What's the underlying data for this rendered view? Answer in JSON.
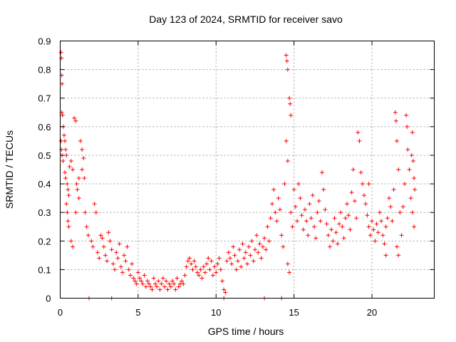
{
  "chart_data": {
    "type": "scatter",
    "title": "Day 123 of 2024, SRMTID for receiver savo",
    "xlabel": "GPS time / hours",
    "ylabel": "SRMTID / TECUs",
    "xlim": [
      0,
      24
    ],
    "ylim": [
      0,
      0.9
    ],
    "xticks": [
      0,
      5,
      10,
      15,
      20
    ],
    "xtick_labels": [
      "0",
      "5",
      "10",
      "15",
      "20"
    ],
    "yticks": [
      0,
      0.1,
      0.2,
      0.3,
      0.4,
      0.5,
      0.6,
      0.7,
      0.8,
      0.9
    ],
    "ytick_labels": [
      "0",
      "0.1",
      "0.2",
      "0.3",
      "0.4",
      "0.5",
      "0.6",
      "0.7",
      "0.8",
      "0.9"
    ],
    "grid": true,
    "marker": "+",
    "marker_color": "#ff0000",
    "series": [
      {
        "name": "SRMTID",
        "points": [
          [
            0.05,
            0.86
          ],
          [
            0.08,
            0.84
          ],
          [
            0.1,
            0.78
          ],
          [
            0.12,
            0.75
          ],
          [
            0.1,
            0.65
          ],
          [
            0.15,
            0.64
          ],
          [
            0.05,
            0.55
          ],
          [
            0.08,
            0.52
          ],
          [
            0.12,
            0.5
          ],
          [
            0.18,
            0.48
          ],
          [
            0.2,
            0.6
          ],
          [
            0.25,
            0.57
          ],
          [
            0.3,
            0.55
          ],
          [
            0.35,
            0.52
          ],
          [
            0.4,
            0.5
          ],
          [
            0.3,
            0.44
          ],
          [
            0.35,
            0.42
          ],
          [
            0.45,
            0.4
          ],
          [
            0.5,
            0.38
          ],
          [
            0.55,
            0.36
          ],
          [
            0.4,
            0.33
          ],
          [
            0.45,
            0.3
          ],
          [
            0.5,
            0.27
          ],
          [
            0.55,
            0.25
          ],
          [
            0.6,
            0.46
          ],
          [
            0.7,
            0.48
          ],
          [
            0.8,
            0.45
          ],
          [
            0.9,
            0.63
          ],
          [
            1.0,
            0.62
          ],
          [
            1.05,
            0.4
          ],
          [
            1.1,
            0.38
          ],
          [
            1.2,
            0.35
          ],
          [
            1.3,
            0.55
          ],
          [
            1.4,
            0.52
          ],
          [
            1.5,
            0.49
          ],
          [
            1.55,
            0.42
          ],
          [
            1.6,
            0.3
          ],
          [
            1.7,
            0.25
          ],
          [
            1.8,
            0.22
          ],
          [
            0.7,
            0.2
          ],
          [
            0.8,
            0.18
          ],
          [
            1.0,
            0.3
          ],
          [
            1.2,
            0.42
          ],
          [
            1.4,
            0.45
          ],
          [
            2.0,
            0.2
          ],
          [
            2.1,
            0.18
          ],
          [
            2.2,
            0.33
          ],
          [
            2.3,
            0.3
          ],
          [
            2.4,
            0.16
          ],
          [
            2.5,
            0.14
          ],
          [
            2.6,
            0.22
          ],
          [
            2.7,
            0.21
          ],
          [
            2.8,
            0.18
          ],
          [
            2.9,
            0.15
          ],
          [
            3.0,
            0.13
          ],
          [
            3.1,
            0.23
          ],
          [
            3.2,
            0.2
          ],
          [
            3.3,
            0.17
          ],
          [
            3.4,
            0.12
          ],
          [
            3.5,
            0.1
          ],
          [
            3.6,
            0.16
          ],
          [
            3.7,
            0.14
          ],
          [
            3.8,
            0.19
          ],
          [
            3.9,
            0.11
          ],
          [
            4.0,
            0.09
          ],
          [
            4.1,
            0.15
          ],
          [
            4.2,
            0.13
          ],
          [
            4.3,
            0.18
          ],
          [
            4.4,
            0.1
          ],
          [
            4.5,
            0.08
          ],
          [
            4.6,
            0.12
          ],
          [
            4.7,
            0.07
          ],
          [
            4.8,
            0.06
          ],
          [
            4.9,
            0.05
          ],
          [
            5.0,
            0.09
          ],
          [
            5.1,
            0.07
          ],
          [
            5.2,
            0.06
          ],
          [
            5.3,
            0.05
          ],
          [
            5.4,
            0.08
          ],
          [
            5.5,
            0.04
          ],
          [
            5.6,
            0.06
          ],
          [
            5.7,
            0.05
          ],
          [
            5.8,
            0.04
          ],
          [
            5.9,
            0.03
          ],
          [
            6.0,
            0.07
          ],
          [
            6.1,
            0.05
          ],
          [
            6.2,
            0.04
          ],
          [
            6.3,
            0.06
          ],
          [
            6.4,
            0.03
          ],
          [
            6.5,
            0.05
          ],
          [
            6.6,
            0.07
          ],
          [
            6.7,
            0.04
          ],
          [
            6.8,
            0.06
          ],
          [
            6.9,
            0.03
          ],
          [
            7.0,
            0.05
          ],
          [
            7.1,
            0.04
          ],
          [
            7.2,
            0.06
          ],
          [
            7.3,
            0.05
          ],
          [
            7.4,
            0.03
          ],
          [
            7.5,
            0.07
          ],
          [
            7.6,
            0.04
          ],
          [
            7.7,
            0.05
          ],
          [
            7.8,
            0.06
          ],
          [
            7.9,
            0.05
          ],
          [
            8.0,
            0.08
          ],
          [
            8.1,
            0.11
          ],
          [
            8.2,
            0.13
          ],
          [
            8.3,
            0.14
          ],
          [
            8.4,
            0.12
          ],
          [
            8.5,
            0.1
          ],
          [
            8.6,
            0.13
          ],
          [
            8.7,
            0.11
          ],
          [
            8.8,
            0.09
          ],
          [
            8.9,
            0.08
          ],
          [
            9.0,
            0.1
          ],
          [
            9.1,
            0.07
          ],
          [
            9.2,
            0.11
          ],
          [
            9.3,
            0.09
          ],
          [
            9.4,
            0.12
          ],
          [
            9.5,
            0.14
          ],
          [
            9.6,
            0.1
          ],
          [
            9.7,
            0.13
          ],
          [
            9.8,
            0.08
          ],
          [
            9.9,
            0.11
          ],
          [
            10.0,
            0.09
          ],
          [
            10.1,
            0.12
          ],
          [
            10.2,
            0.14
          ],
          [
            10.3,
            0.1
          ],
          [
            10.4,
            0.06
          ],
          [
            10.5,
            0.03
          ],
          [
            10.6,
            0.02
          ],
          [
            10.7,
            0.13
          ],
          [
            10.8,
            0.16
          ],
          [
            10.9,
            0.14
          ],
          [
            11.0,
            0.12
          ],
          [
            11.1,
            0.18
          ],
          [
            11.2,
            0.15
          ],
          [
            11.3,
            0.1
          ],
          [
            11.4,
            0.13
          ],
          [
            11.5,
            0.17
          ],
          [
            11.6,
            0.11
          ],
          [
            11.7,
            0.19
          ],
          [
            11.8,
            0.14
          ],
          [
            11.9,
            0.16
          ],
          [
            12.0,
            0.12
          ],
          [
            12.1,
            0.18
          ],
          [
            12.2,
            0.15
          ],
          [
            12.3,
            0.2
          ],
          [
            12.4,
            0.13
          ],
          [
            12.5,
            0.17
          ],
          [
            12.6,
            0.22
          ],
          [
            12.7,
            0.16
          ],
          [
            12.8,
            0.19
          ],
          [
            12.9,
            0.14
          ],
          [
            13.0,
            0.18
          ],
          [
            13.1,
            0.21
          ],
          [
            13.2,
            0.17
          ],
          [
            13.3,
            0.25
          ],
          [
            13.4,
            0.2
          ],
          [
            13.5,
            0.28
          ],
          [
            13.6,
            0.33
          ],
          [
            13.7,
            0.38
          ],
          [
            13.8,
            0.3
          ],
          [
            13.9,
            0.27
          ],
          [
            14.0,
            0.35
          ],
          [
            14.1,
            0.31
          ],
          [
            14.2,
            0.22
          ],
          [
            14.3,
            0.18
          ],
          [
            14.4,
            0.4
          ],
          [
            14.5,
            0.85
          ],
          [
            14.55,
            0.83
          ],
          [
            14.6,
            0.8
          ],
          [
            14.5,
            0.55
          ],
          [
            14.6,
            0.48
          ],
          [
            14.7,
            0.7
          ],
          [
            14.75,
            0.68
          ],
          [
            14.8,
            0.64
          ],
          [
            14.6,
            0.12
          ],
          [
            14.7,
            0.09
          ],
          [
            14.8,
            0.3
          ],
          [
            14.9,
            0.25
          ],
          [
            15.0,
            0.38
          ],
          [
            15.1,
            0.32
          ],
          [
            15.2,
            0.27
          ],
          [
            15.3,
            0.4
          ],
          [
            15.4,
            0.35
          ],
          [
            15.5,
            0.29
          ],
          [
            15.6,
            0.24
          ],
          [
            15.7,
            0.31
          ],
          [
            15.8,
            0.27
          ],
          [
            15.9,
            0.22
          ],
          [
            16.0,
            0.33
          ],
          [
            16.1,
            0.28
          ],
          [
            16.2,
            0.36
          ],
          [
            16.3,
            0.25
          ],
          [
            16.4,
            0.21
          ],
          [
            16.5,
            0.3
          ],
          [
            16.6,
            0.34
          ],
          [
            16.7,
            0.27
          ],
          [
            16.8,
            0.44
          ],
          [
            16.9,
            0.38
          ],
          [
            17.0,
            0.31
          ],
          [
            17.1,
            0.26
          ],
          [
            17.2,
            0.22
          ],
          [
            17.3,
            0.18
          ],
          [
            17.4,
            0.24
          ],
          [
            17.5,
            0.2
          ],
          [
            17.6,
            0.28
          ],
          [
            17.7,
            0.23
          ],
          [
            17.8,
            0.19
          ],
          [
            17.9,
            0.26
          ],
          [
            18.0,
            0.3
          ],
          [
            18.1,
            0.25
          ],
          [
            18.2,
            0.21
          ],
          [
            18.3,
            0.28
          ],
          [
            18.4,
            0.33
          ],
          [
            18.5,
            0.29
          ],
          [
            18.6,
            0.24
          ],
          [
            18.7,
            0.37
          ],
          [
            18.8,
            0.45
          ],
          [
            18.9,
            0.34
          ],
          [
            19.0,
            0.28
          ],
          [
            19.1,
            0.58
          ],
          [
            19.2,
            0.55
          ],
          [
            19.3,
            0.44
          ],
          [
            19.4,
            0.4
          ],
          [
            19.5,
            0.36
          ],
          [
            19.6,
            0.33
          ],
          [
            19.7,
            0.29
          ],
          [
            19.8,
            0.25
          ],
          [
            19.9,
            0.22
          ],
          [
            20.0,
            0.27
          ],
          [
            20.1,
            0.24
          ],
          [
            20.2,
            0.2
          ],
          [
            20.3,
            0.26
          ],
          [
            20.4,
            0.23
          ],
          [
            20.5,
            0.3
          ],
          [
            20.6,
            0.27
          ],
          [
            20.7,
            0.22
          ],
          [
            20.8,
            0.19
          ],
          [
            20.9,
            0.25
          ],
          [
            21.0,
            0.28
          ],
          [
            21.1,
            0.35
          ],
          [
            21.2,
            0.32
          ],
          [
            21.3,
            0.27
          ],
          [
            21.4,
            0.38
          ],
          [
            21.5,
            0.65
          ],
          [
            21.55,
            0.62
          ],
          [
            21.6,
            0.55
          ],
          [
            21.7,
            0.45
          ],
          [
            21.8,
            0.3
          ],
          [
            21.9,
            0.22
          ],
          [
            22.0,
            0.32
          ],
          [
            22.1,
            0.4
          ],
          [
            22.2,
            0.64
          ],
          [
            22.25,
            0.6
          ],
          [
            22.3,
            0.52
          ],
          [
            22.4,
            0.45
          ],
          [
            22.5,
            0.35
          ],
          [
            22.55,
            0.5
          ],
          [
            22.6,
            0.58
          ],
          [
            22.65,
            0.48
          ],
          [
            22.7,
            0.42
          ],
          [
            22.75,
            0.38
          ],
          [
            22.6,
            0.3
          ],
          [
            22.7,
            0.25
          ],
          [
            21.7,
            0.15
          ],
          [
            21.6,
            0.18
          ],
          [
            20.9,
            0.15
          ],
          [
            19.8,
            0.4
          ],
          [
            1.85,
            0.0
          ],
          [
            3.3,
            0.0
          ],
          [
            10.5,
            0.0
          ],
          [
            13.1,
            0.0
          ],
          [
            14.2,
            0.0
          ]
        ]
      }
    ]
  }
}
